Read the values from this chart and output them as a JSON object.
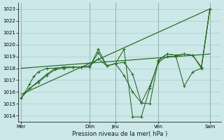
{
  "bg_color": "#cce8e8",
  "grid_color": "#aacccc",
  "line_color": "#2d6e2d",
  "title": "Pression niveau de la mer( hPa )",
  "ylim": [
    1013.5,
    1023.5
  ],
  "yticks": [
    1014,
    1015,
    1016,
    1017,
    1018,
    1019,
    1020,
    1021,
    1022,
    1023
  ],
  "day_labels": [
    "Mer",
    "Dim",
    "Jeu",
    "Ven",
    "Sam"
  ],
  "day_positions": [
    0,
    8,
    11,
    16,
    22
  ],
  "xlim": [
    -0.3,
    23.3
  ],
  "series1_x": [
    0,
    0.5,
    1,
    1.5,
    2,
    3,
    4,
    5,
    6,
    7,
    8,
    9,
    10,
    11,
    12,
    13,
    14,
    15,
    16,
    17,
    18,
    19,
    20,
    21,
    22
  ],
  "series1_y": [
    1015.5,
    1016.0,
    1016.7,
    1017.3,
    1017.7,
    1018.0,
    1018.0,
    1018.1,
    1018.1,
    1018.1,
    1018.2,
    1018.8,
    1018.2,
    1018.4,
    1018.5,
    1017.5,
    1015.1,
    1015.0,
    1018.7,
    1019.2,
    1019.1,
    1019.2,
    1019.1,
    1018.0,
    1023.0
  ],
  "series2_x": [
    0,
    1,
    2,
    3,
    4,
    5,
    6,
    7,
    8,
    9,
    10,
    11,
    12,
    13,
    14,
    15,
    16,
    17,
    18,
    19,
    20,
    21,
    22
  ],
  "series2_y": [
    1015.5,
    1016.3,
    1016.8,
    1017.4,
    1017.9,
    1018.0,
    1018.1,
    1018.1,
    1018.1,
    1019.6,
    1018.2,
    1018.4,
    1019.6,
    1013.9,
    1013.9,
    1016.3,
    1018.6,
    1019.2,
    1019.1,
    1016.5,
    1017.7,
    1018.0,
    1023.0
  ],
  "series3_x": [
    0,
    22
  ],
  "series3_y": [
    1015.8,
    1023.0
  ],
  "series4_x": [
    0,
    1,
    2,
    3,
    4,
    5,
    6,
    7,
    8,
    9,
    10,
    11,
    12,
    13,
    14,
    15,
    16,
    17,
    18,
    19,
    20,
    21,
    22
  ],
  "series4_y": [
    1015.5,
    1016.3,
    1016.9,
    1017.5,
    1018.0,
    1018.1,
    1018.1,
    1018.1,
    1018.2,
    1019.3,
    1018.2,
    1018.4,
    1017.4,
    1016.0,
    1015.1,
    1016.5,
    1018.5,
    1019.0,
    1019.0,
    1019.2,
    1019.1,
    1018.1,
    1023.0
  ],
  "series5_x": [
    0,
    22
  ],
  "series5_y": [
    1018.0,
    1019.2
  ]
}
